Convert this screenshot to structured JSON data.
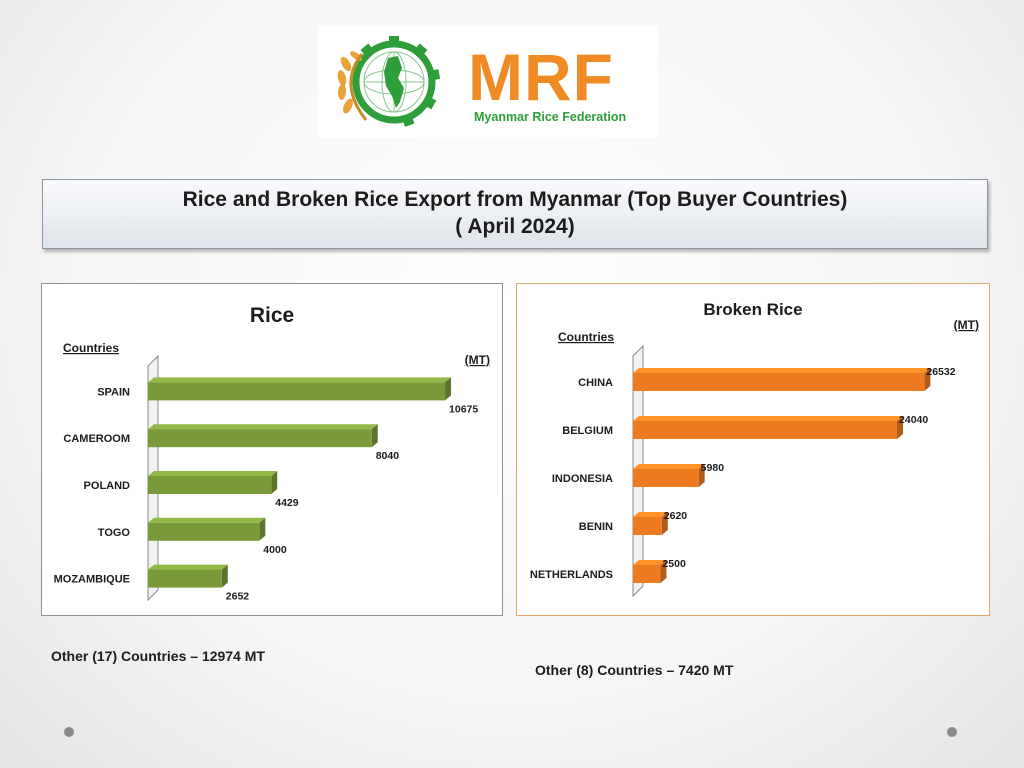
{
  "logo": {
    "text": "MRF",
    "subtitle": "Myanmar Rice Federation"
  },
  "header": {
    "title_line1": "Rice and Broken Rice Export from Myanmar (Top Buyer Countries)",
    "title_line2": "( April 2024)"
  },
  "chart_data": [
    {
      "type": "bar",
      "orientation": "horizontal",
      "title": "Rice",
      "ylabel": "Countries",
      "unit": "(MT)",
      "categories": [
        "SPAIN",
        "CAMEROOM",
        "POLAND",
        "TOGO",
        "MOZAMBIQUE"
      ],
      "values": [
        10675,
        8040,
        4429,
        4000,
        2652
      ],
      "xlim": [
        0,
        11500
      ],
      "grid": false,
      "color": "#7a9a3a"
    },
    {
      "type": "bar",
      "orientation": "horizontal",
      "title": "Broken  Rice",
      "ylabel": "Countries",
      "unit": "(MT)",
      "categories": [
        "CHINA",
        "BELGIUM",
        "INDONESIA",
        "BENIN",
        "NETHERLANDS"
      ],
      "values": [
        26532,
        24040,
        5980,
        2620,
        2500
      ],
      "xlim": [
        0,
        28500
      ],
      "grid": false,
      "color": "#ee7a22"
    }
  ],
  "footnotes": {
    "rice": "Other (17) Countries –  12974 MT",
    "broken": "Other (8) Countries –  7420 MT"
  }
}
